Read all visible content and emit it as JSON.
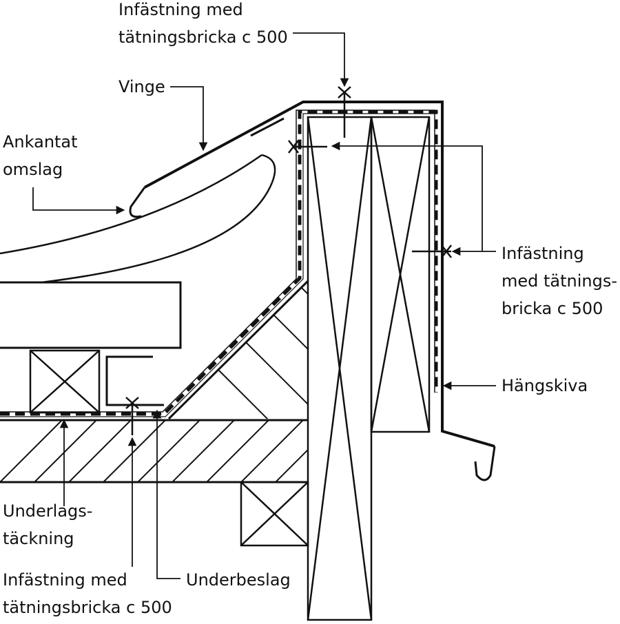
{
  "labels": {
    "top_fastening": [
      "Infästning med",
      "tätningsbricka c 500"
    ],
    "wing": "Vinge",
    "folded_edge": [
      "Ankantat",
      "omslag"
    ],
    "right_fastening": [
      "Infästning",
      "med tätnings-",
      "bricka c 500"
    ],
    "fascia": "Hängskiva",
    "underlay": [
      "Underlags-",
      "täckning"
    ],
    "bottom_fastening": [
      "Infästning med",
      "tätningsbricka c 500"
    ],
    "under_flashing": "Underbeslag"
  },
  "colors": {
    "line": "#111111",
    "background": "#ffffff"
  }
}
